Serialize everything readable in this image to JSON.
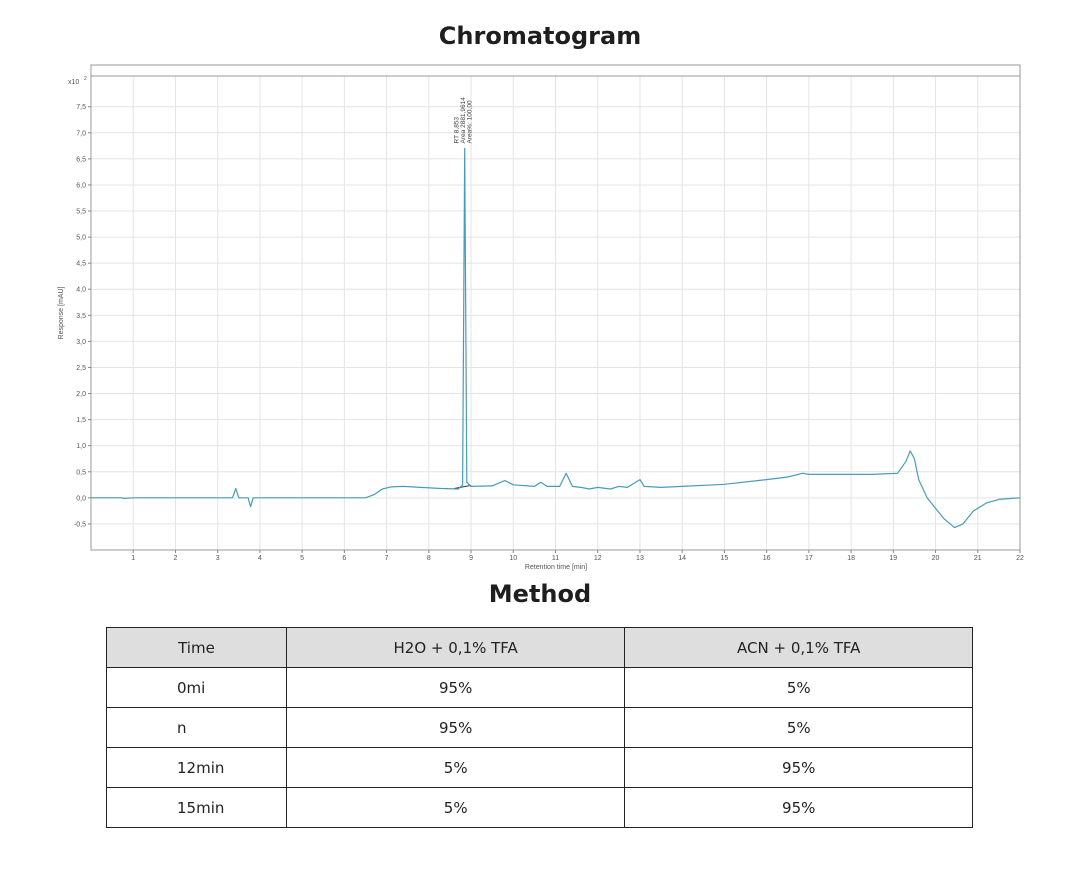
{
  "header": {
    "title": "Chromatogram"
  },
  "chart_data": {
    "type": "line",
    "xlabel": "Retention time [min]",
    "ylabel": "Response [mAU]",
    "y_multiplier_label": "x10",
    "y_multiplier_exponent": "2",
    "xlim": [
      0,
      22
    ],
    "ylim": [
      -1.0,
      8.3
    ],
    "x_ticks": [
      "1",
      "2",
      "3",
      "4",
      "5",
      "6",
      "7",
      "8",
      "9",
      "10",
      "11",
      "12",
      "13",
      "14",
      "15",
      "16",
      "17",
      "18",
      "19",
      "20",
      "21",
      "22"
    ],
    "y_ticks": [
      "-0,5",
      "0,0",
      "0,5",
      "1,0",
      "1,5",
      "2,0",
      "2,5",
      "3,0",
      "3,5",
      "4,0",
      "4,5",
      "5,0",
      "5,5",
      "6,0",
      "6,5",
      "7,0",
      "7,5"
    ],
    "grid": true,
    "line_color": "#4a9bb8",
    "series": [
      {
        "values": [
          [
            0,
            0
          ],
          [
            0.7,
            0
          ],
          [
            0.8,
            -0.01
          ],
          [
            1.0,
            0
          ],
          [
            3.35,
            0
          ],
          [
            3.43,
            0.18
          ],
          [
            3.5,
            0
          ],
          [
            3.72,
            0
          ],
          [
            3.78,
            -0.17
          ],
          [
            3.84,
            0
          ],
          [
            6.5,
            0
          ],
          [
            6.7,
            0.06
          ],
          [
            6.9,
            0.17
          ],
          [
            7.1,
            0.21
          ],
          [
            7.4,
            0.22
          ],
          [
            7.8,
            0.2
          ],
          [
            8.3,
            0.18
          ],
          [
            8.7,
            0.17
          ],
          [
            8.8,
            0.25
          ],
          [
            8.85,
            6.7
          ],
          [
            8.9,
            0.3
          ],
          [
            9.0,
            0.22
          ],
          [
            9.5,
            0.23
          ],
          [
            9.8,
            0.33
          ],
          [
            10.0,
            0.25
          ],
          [
            10.5,
            0.22
          ],
          [
            10.65,
            0.3
          ],
          [
            10.8,
            0.22
          ],
          [
            11.1,
            0.22
          ],
          [
            11.25,
            0.47
          ],
          [
            11.4,
            0.22
          ],
          [
            11.6,
            0.2
          ],
          [
            11.8,
            0.17
          ],
          [
            12.0,
            0.2
          ],
          [
            12.3,
            0.17
          ],
          [
            12.5,
            0.22
          ],
          [
            12.7,
            0.2
          ],
          [
            12.9,
            0.3
          ],
          [
            13.0,
            0.35
          ],
          [
            13.1,
            0.22
          ],
          [
            13.5,
            0.2
          ],
          [
            14,
            0.22
          ],
          [
            15,
            0.26
          ],
          [
            16,
            0.35
          ],
          [
            16.5,
            0.4
          ],
          [
            16.85,
            0.47
          ],
          [
            17.0,
            0.45
          ],
          [
            17.5,
            0.45
          ],
          [
            18.5,
            0.45
          ],
          [
            19.1,
            0.47
          ],
          [
            19.3,
            0.7
          ],
          [
            19.4,
            0.9
          ],
          [
            19.5,
            0.75
          ],
          [
            19.6,
            0.35
          ],
          [
            19.8,
            0.0
          ],
          [
            20.0,
            -0.2
          ],
          [
            20.2,
            -0.4
          ],
          [
            20.45,
            -0.57
          ],
          [
            20.65,
            -0.5
          ],
          [
            20.9,
            -0.25
          ],
          [
            21.2,
            -0.1
          ],
          [
            21.5,
            -0.03
          ],
          [
            22,
            0
          ]
        ]
      }
    ],
    "baseline": [
      [
        8.6,
        0.18
      ],
      [
        9.0,
        0.24
      ]
    ],
    "peak_annotation": [
      "RT 8,853",
      "Area 2881,9614",
      "Area%: 100,00"
    ]
  },
  "method": {
    "title": "Method",
    "headers": [
      "Time",
      "H2O + 0,1% TFA",
      "ACN + 0,1% TFA"
    ],
    "rows": [
      {
        "time": "0mi",
        "h2o": "95%",
        "acn": "5%"
      },
      {
        "time": "n",
        "h2o": "95%",
        "acn": "5%"
      },
      {
        "time": "12min",
        "h2o": "5%",
        "acn": "95%"
      },
      {
        "time": "15min",
        "h2o": "5%",
        "acn": "95%"
      }
    ]
  }
}
